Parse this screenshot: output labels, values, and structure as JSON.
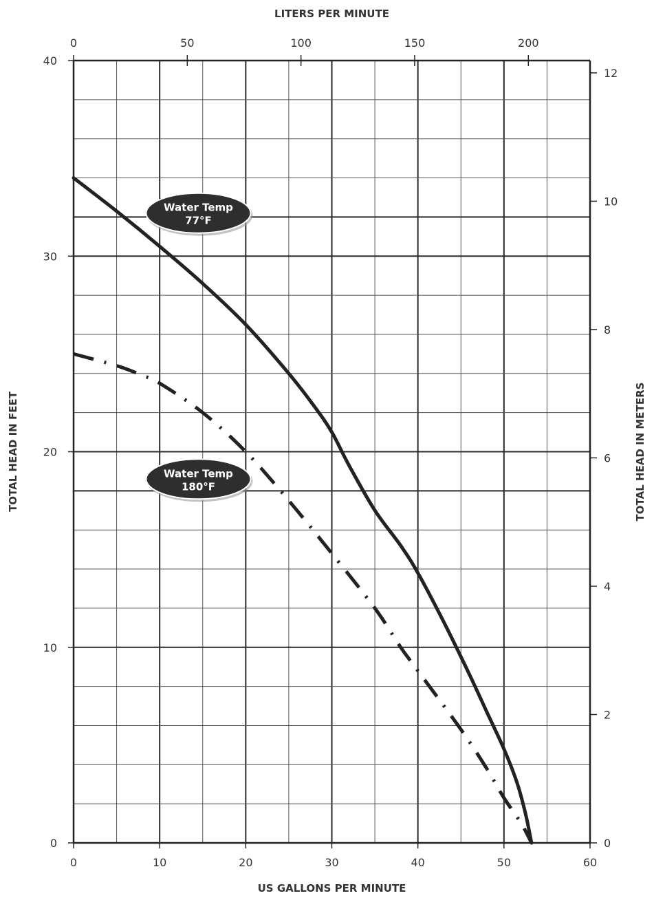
{
  "chart_data": {
    "type": "line",
    "xlabel": "US GALLONS PER MINUTE",
    "x2label": "LITERS PER MINUTE",
    "ylabel": "TOTAL HEAD IN FEET",
    "y2label": "TOTAL HEAD IN METERS",
    "xlim": [
      0,
      60
    ],
    "ylim": [
      0,
      40
    ],
    "x_ticks": [
      "0",
      "10",
      "20",
      "30",
      "40",
      "50",
      "60"
    ],
    "y_ticks": [
      "0",
      "10",
      "20",
      "30",
      "40"
    ],
    "x2_ticks": [
      "0",
      "50",
      "100",
      "150",
      "200"
    ],
    "y2_ticks": [
      "0",
      "2",
      "4",
      "6",
      "8",
      "10",
      "12"
    ],
    "grid": true,
    "series": [
      {
        "name": "Water Temp 77°F",
        "style": "solid",
        "x": [
          0,
          5,
          10,
          15,
          20,
          25,
          28,
          30,
          32,
          35,
          38,
          40,
          43,
          46,
          48,
          50,
          51.5,
          52.5,
          53.2
        ],
        "y": [
          34,
          32.3,
          30.5,
          28.6,
          26.5,
          24,
          22.3,
          21,
          19.3,
          17,
          15.2,
          13.8,
          11.3,
          8.6,
          6.7,
          4.8,
          3.1,
          1.5,
          0
        ]
      },
      {
        "name": "Water Temp 180°F",
        "style": "dash-dot",
        "x": [
          0,
          5,
          8,
          10,
          15,
          20,
          25,
          30,
          35,
          38,
          40,
          45,
          48,
          50,
          52,
          53.2
        ],
        "y": [
          25,
          24.4,
          23.9,
          23.5,
          22,
          20,
          17.5,
          14.8,
          12,
          10,
          8.8,
          5.8,
          3.8,
          2.3,
          1,
          0
        ]
      }
    ],
    "annotations": [
      {
        "line1": "Water Temp",
        "line2": "77°F",
        "x": 14.5,
        "y": 32.2
      },
      {
        "line1": "Water Temp",
        "line2": "180°F",
        "x": 14.5,
        "y": 18.6
      }
    ]
  }
}
